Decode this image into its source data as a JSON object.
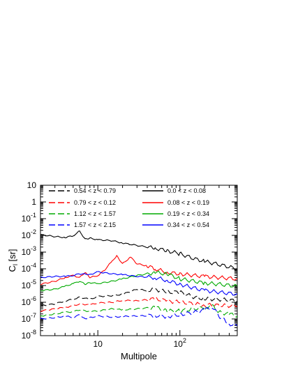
{
  "chart_data": {
    "type": "line",
    "title": "",
    "xlabel": "Multipole",
    "ylabel": "C",
    "ylabel_sub": "l",
    "ylabel_unit": " [sr]",
    "xscale": "log",
    "yscale": "log",
    "xlim": [
      2,
      500
    ],
    "ylim": [
      1e-08,
      10
    ],
    "grid": false,
    "legend_position": "top",
    "x_tick_labels": [
      {
        "value": 10,
        "base": "10",
        "exp": ""
      },
      {
        "value": 100,
        "base": "10",
        "exp": "2"
      }
    ],
    "y_tick_labels": [
      {
        "value": 10,
        "base": "10",
        "exp": ""
      },
      {
        "value": 1,
        "base": "1",
        "exp": ""
      },
      {
        "value": 0.1,
        "base": "10",
        "exp": "-1"
      },
      {
        "value": 0.01,
        "base": "10",
        "exp": "-2"
      },
      {
        "value": 0.001,
        "base": "10",
        "exp": "-3"
      },
      {
        "value": 0.0001,
        "base": "10",
        "exp": "-4"
      },
      {
        "value": 1e-05,
        "base": "10",
        "exp": "-5"
      },
      {
        "value": 1e-06,
        "base": "10",
        "exp": "-6"
      },
      {
        "value": 1e-07,
        "base": "10",
        "exp": "-7"
      },
      {
        "value": 1e-08,
        "base": "10",
        "exp": "-8"
      }
    ],
    "series": [
      {
        "name": "0.0 < z < 0.08",
        "color": "#000000",
        "dash": "solid",
        "x": [
          2,
          3,
          4,
          5,
          6,
          7,
          8,
          10,
          15,
          20,
          30,
          50,
          70,
          100,
          150,
          200,
          300,
          500
        ],
        "y": [
          0.011,
          0.0085,
          0.0075,
          0.0095,
          0.018,
          0.006,
          0.0068,
          0.0055,
          0.0048,
          0.0035,
          0.0025,
          0.0017,
          0.0012,
          0.0008,
          0.0004,
          0.00028,
          0.00018,
          0.0001
        ]
      },
      {
        "name": "0.08 < z < 0.19",
        "color": "#ff0000",
        "dash": "solid",
        "x": [
          2,
          3,
          4,
          5,
          6,
          7,
          8,
          10,
          12,
          15,
          17,
          20,
          25,
          30,
          40,
          50,
          70,
          100,
          150,
          200,
          300,
          500
        ],
        "y": [
          1.2e-05,
          1.8e-05,
          3e-05,
          4e-05,
          3e-05,
          6e-05,
          3e-05,
          4e-05,
          8e-05,
          0.0003,
          0.0006,
          0.0002,
          0.0005,
          0.0002,
          0.00015,
          0.0001,
          6e-05,
          5e-05,
          4e-05,
          3.5e-05,
          3e-05,
          2.5e-05
        ]
      },
      {
        "name": "0.19 < z < 0.34",
        "color": "#00aa00",
        "dash": "solid",
        "x": [
          2,
          3,
          4,
          5,
          6,
          7,
          8,
          10,
          15,
          20,
          30,
          50,
          70,
          100,
          150,
          200,
          300,
          500
        ],
        "y": [
          5e-06,
          6e-06,
          9e-06,
          1.3e-05,
          1.8e-05,
          1.2e-05,
          1.5e-05,
          1.3e-05,
          1.8e-05,
          2.5e-05,
          4e-05,
          6e-05,
          5e-05,
          2.5e-05,
          1.8e-05,
          1.4e-05,
          1.2e-05,
          9e-06
        ]
      },
      {
        "name": "0.34 < z < 0.54",
        "color": "#0000ff",
        "dash": "solid",
        "x": [
          2,
          3,
          4,
          5,
          6,
          7,
          8,
          10,
          15,
          20,
          30,
          50,
          70,
          100,
          150,
          200,
          300,
          500
        ],
        "y": [
          3e-05,
          3.5e-05,
          3.5e-05,
          4e-05,
          5e-05,
          5e-05,
          4.5e-05,
          6.5e-05,
          5e-05,
          4.5e-05,
          3.5e-05,
          3e-05,
          2e-05,
          1.2e-05,
          7e-06,
          5e-06,
          4e-06,
          3e-06
        ]
      },
      {
        "name": "0.54 < z < 0.79",
        "color": "#000000",
        "dash": "long",
        "x": [
          2,
          3,
          4,
          5,
          6,
          8,
          10,
          15,
          20,
          30,
          40,
          50,
          70,
          100,
          150,
          200,
          300,
          500
        ],
        "y": [
          6e-07,
          8e-07,
          1.2e-06,
          1.5e-06,
          2e-06,
          1.5e-06,
          2.2e-06,
          2.5e-06,
          3e-06,
          6e-06,
          5e-06,
          6e-06,
          4e-06,
          4e-06,
          2e-06,
          1.6e-06,
          1.5e-06,
          1.2e-06
        ]
      },
      {
        "name": "0.79 < z < 0.12",
        "color": "#ff0000",
        "dash": "long",
        "x": [
          2,
          3,
          4,
          5,
          6,
          8,
          10,
          15,
          20,
          30,
          50,
          70,
          100,
          150,
          200,
          300,
          500
        ],
        "y": [
          3e-07,
          4e-07,
          5e-07,
          6e-07,
          8e-07,
          7e-07,
          9e-07,
          1e-06,
          1.3e-06,
          1.2e-06,
          1.6e-06,
          1.2e-06,
          1e-06,
          8e-07,
          7e-07,
          6.5e-07,
          6e-07
        ]
      },
      {
        "name": "1.12 < z < 1.57",
        "color": "#00aa00",
        "dash": "long",
        "x": [
          2,
          3,
          4,
          5,
          6,
          8,
          10,
          15,
          20,
          30,
          50,
          70,
          100,
          150,
          200,
          250,
          300,
          400,
          500
        ],
        "y": [
          1.5e-07,
          2e-07,
          2.5e-07,
          2.7e-07,
          3.5e-07,
          2.8e-07,
          3e-07,
          4e-07,
          3.5e-07,
          4e-07,
          5e-07,
          3e-07,
          3e-07,
          4e-07,
          5e-07,
          6e-07,
          2.5e-07,
          2e-07,
          1.5e-07
        ]
      },
      {
        "name": "1.57 < z < 2.15",
        "color": "#0000ff",
        "dash": "long",
        "x": [
          2,
          3,
          4,
          5,
          6,
          7,
          8,
          10,
          15,
          20,
          30,
          50,
          70,
          100,
          150,
          200,
          250,
          300,
          400,
          500
        ],
        "y": [
          1e-07,
          1.2e-07,
          1.5e-07,
          1.2e-07,
          1.8e-07,
          1e-07,
          1.2e-07,
          1.5e-07,
          1.3e-07,
          1.4e-07,
          1.5e-07,
          1.6e-07,
          1.4e-07,
          1.8e-07,
          2.5e-07,
          3.5e-07,
          5e-07,
          1.5e-07,
          5e-08,
          4e-08
        ]
      }
    ],
    "legend": [
      {
        "label": "0.54 < z < 0.79",
        "color": "#000000",
        "dash": "long",
        "column": 0
      },
      {
        "label": "0.79 < z < 0.12",
        "color": "#ff0000",
        "dash": "long",
        "column": 0
      },
      {
        "label": "1.12 < z < 1.57",
        "color": "#00aa00",
        "dash": "long",
        "column": 0
      },
      {
        "label": "1.57 < z < 2.15",
        "color": "#0000ff",
        "dash": "long",
        "column": 0
      },
      {
        "label": "0.0 < z < 0.08",
        "color": "#000000",
        "dash": "solid",
        "column": 1
      },
      {
        "label": "0.08 < z < 0.19",
        "color": "#ff0000",
        "dash": "solid",
        "column": 1
      },
      {
        "label": "0.19 < z < 0.34",
        "color": "#00aa00",
        "dash": "solid",
        "column": 1
      },
      {
        "label": "0.34 < z < 0.54",
        "color": "#0000ff",
        "dash": "solid",
        "column": 1
      }
    ]
  }
}
